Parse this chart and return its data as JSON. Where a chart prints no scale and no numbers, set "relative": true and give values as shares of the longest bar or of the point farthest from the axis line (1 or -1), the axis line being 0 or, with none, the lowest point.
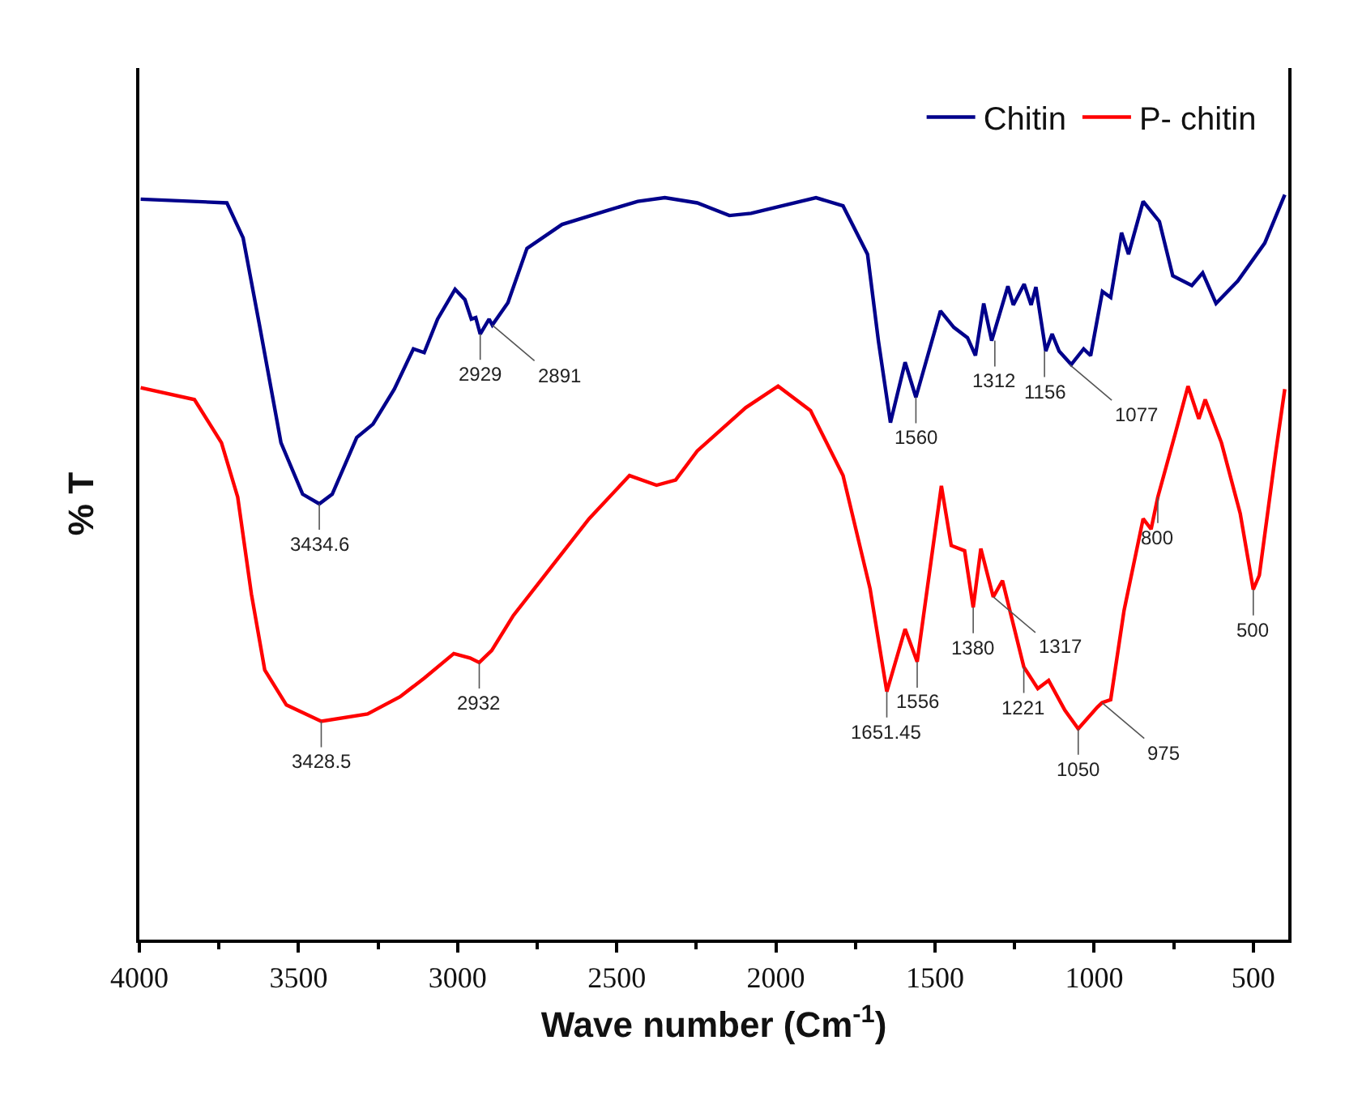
{
  "chart_data": {
    "type": "line",
    "relative": true,
    "xlabel": "Wave number (Cm$^{-1}$)",
    "ylabel": "% T",
    "xlim": [
      4000,
      390
    ],
    "xticks": [
      4000,
      3500,
      3000,
      2500,
      2000,
      1500,
      1000,
      500
    ],
    "grid": false,
    "legend": "top right",
    "marker": "none",
    "line_style": "solid",
    "series": [
      {
        "name": "Chitin",
        "color": "#00008b",
        "x": [
          3996,
          3725,
          3674,
          3623,
          3555,
          3487,
          3434.6,
          3394,
          3317,
          3266,
          3199,
          3139,
          3105,
          3063,
          3008,
          2977,
          2957,
          2943,
          2929,
          2901,
          2891,
          2842,
          2782,
          2672,
          2536,
          2434,
          2349,
          2247,
          2146,
          2078,
          1874,
          1789,
          1712,
          1678,
          1640,
          1594,
          1560,
          1483,
          1441,
          1398,
          1373,
          1347,
          1322,
          1271,
          1254,
          1220,
          1198,
          1183,
          1152,
          1132,
          1110,
          1072,
          1033,
          1011,
          974,
          948,
          914,
          892,
          846,
          795,
          753,
          693,
          659,
          617,
          549,
          464,
          401
        ],
        "values": [
          0.994,
          0.989,
          0.942,
          0.826,
          0.667,
          0.598,
          0.585,
          0.598,
          0.674,
          0.692,
          0.739,
          0.793,
          0.788,
          0.833,
          0.873,
          0.859,
          0.833,
          0.835,
          0.813,
          0.833,
          0.825,
          0.855,
          0.928,
          0.96,
          0.978,
          0.991,
          0.996,
          0.989,
          0.972,
          0.975,
          0.996,
          0.985,
          0.92,
          0.804,
          0.694,
          0.775,
          0.728,
          0.844,
          0.822,
          0.808,
          0.784,
          0.854,
          0.804,
          0.877,
          0.852,
          0.88,
          0.852,
          0.876,
          0.79,
          0.813,
          0.79,
          0.772,
          0.793,
          0.784,
          0.87,
          0.862,
          0.949,
          0.92,
          0.991,
          0.964,
          0.891,
          0.878,
          0.895,
          0.854,
          0.884,
          0.935,
          1
        ]
      },
      {
        "name": "P- chitin",
        "color": "#ff0000",
        "x": [
          3996,
          3827,
          3742,
          3691,
          3648,
          3606,
          3538,
          3428.5,
          3283,
          3181,
          3105,
          3012,
          2961,
          2932,
          2893,
          2825,
          2706,
          2587,
          2460,
          2375,
          2315,
          2247,
          2095,
          1993,
          1891,
          1789,
          1704,
          1651.45,
          1594,
          1556,
          1480,
          1449,
          1407,
          1380,
          1356,
          1317,
          1288,
          1221,
          1177,
          1143,
          1092,
          1050,
          990,
          975,
          948,
          906,
          846,
          821,
          800,
          744,
          705,
          671,
          651,
          600,
          541,
          500,
          481,
          430,
          401
        ],
        "values": [
          0.741,
          0.725,
          0.667,
          0.594,
          0.464,
          0.362,
          0.315,
          0.293,
          0.303,
          0.326,
          0.351,
          0.384,
          0.378,
          0.372,
          0.388,
          0.435,
          0.5,
          0.565,
          0.623,
          0.61,
          0.617,
          0.656,
          0.714,
          0.743,
          0.71,
          0.623,
          0.471,
          0.333,
          0.417,
          0.373,
          0.609,
          0.529,
          0.522,
          0.446,
          0.525,
          0.46,
          0.482,
          0.366,
          0.337,
          0.348,
          0.308,
          0.283,
          0.312,
          0.318,
          0.322,
          0.442,
          0.565,
          0.551,
          0.594,
          0.681,
          0.743,
          0.699,
          0.725,
          0.667,
          0.572,
          0.47,
          0.489,
          0.652,
          0.739
        ]
      }
    ],
    "annotations": [
      {
        "text": "3434.6",
        "x": 3434.6,
        "y": 0.585
      },
      {
        "text": "2929",
        "x": 2929,
        "y": 0.813
      },
      {
        "text": "2891",
        "x": 2891,
        "y": 0.825
      },
      {
        "text": "1560",
        "x": 1560,
        "y": 0.728
      },
      {
        "text": "1312",
        "x": 1312,
        "y": 0.804
      },
      {
        "text": "1156",
        "x": 1156,
        "y": 0.79
      },
      {
        "text": "1077",
        "x": 1077,
        "y": 0.772
      },
      {
        "text": "3428.5",
        "x": 3428.5,
        "y": 0.293
      },
      {
        "text": "2932",
        "x": 2932,
        "y": 0.372
      },
      {
        "text": "1651.45",
        "x": 1651.45,
        "y": 0.333
      },
      {
        "text": "1556",
        "x": 1556,
        "y": 0.373
      },
      {
        "text": "1380",
        "x": 1380,
        "y": 0.446
      },
      {
        "text": "1317",
        "x": 1317,
        "y": 0.46
      },
      {
        "text": "1221",
        "x": 1221,
        "y": 0.366
      },
      {
        "text": "1050",
        "x": 1050,
        "y": 0.283
      },
      {
        "text": "975",
        "x": 975,
        "y": 0.318
      },
      {
        "text": "800",
        "x": 800,
        "y": 0.594
      },
      {
        "text": "500",
        "x": 500,
        "y": 0.47
      }
    ]
  }
}
